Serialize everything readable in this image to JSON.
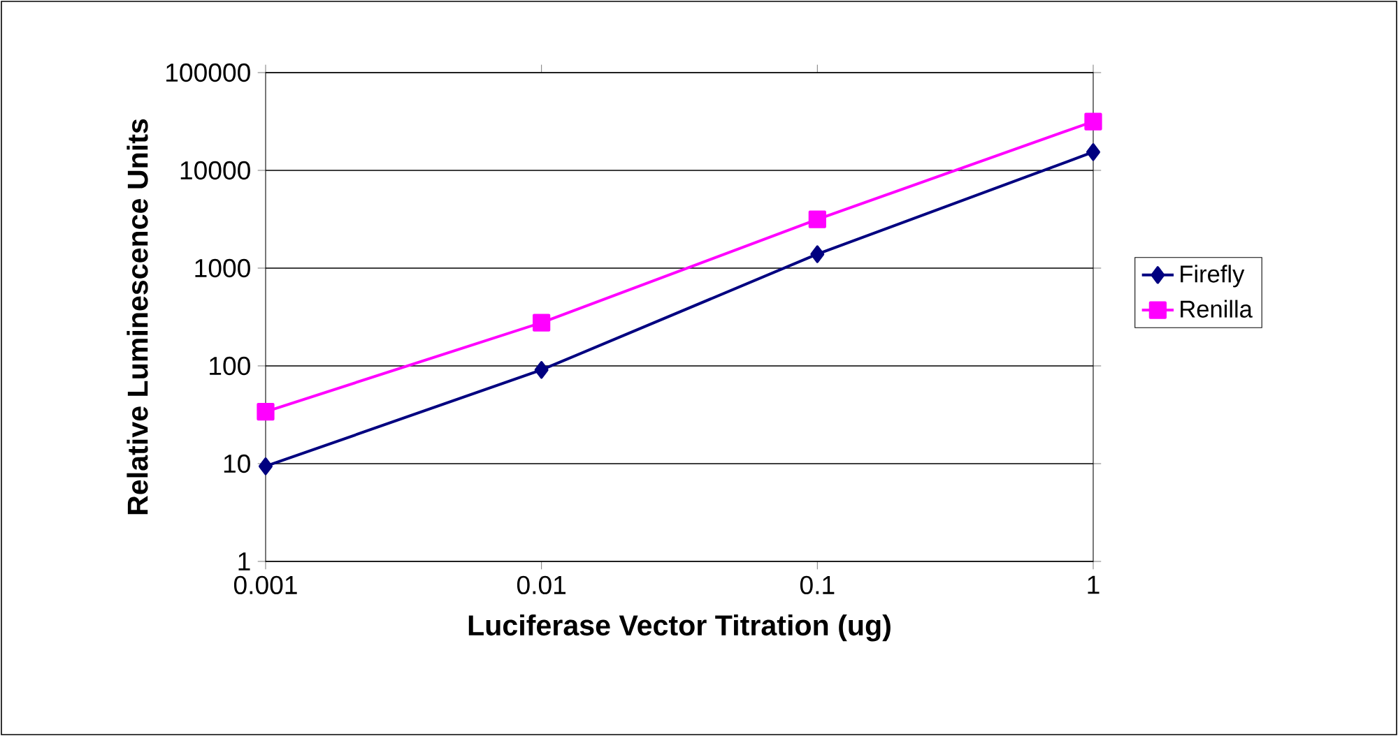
{
  "chart_data": {
    "type": "line",
    "xlabel": "Luciferase Vector Titration (ug)",
    "ylabel": "Relative Luminescence Units",
    "x": [
      0.001,
      0.01,
      0.1,
      1
    ],
    "series": [
      {
        "name": "Firefly",
        "color": "#000080",
        "marker": "diamond",
        "values": [
          9.4,
          91,
          1390,
          15400
        ]
      },
      {
        "name": "Renilla",
        "color": "#ff00ff",
        "marker": "square",
        "values": [
          34,
          277,
          3160,
          31600
        ]
      }
    ],
    "log": "xy",
    "xlim": [
      0.001,
      1
    ],
    "ylim": [
      1,
      100000
    ],
    "xticks": [
      0.001,
      0.01,
      0.1,
      1
    ],
    "yticks": [
      1,
      10,
      100,
      1000,
      10000,
      100000
    ],
    "grid": "y",
    "legend": "right",
    "line_style": "solid"
  }
}
